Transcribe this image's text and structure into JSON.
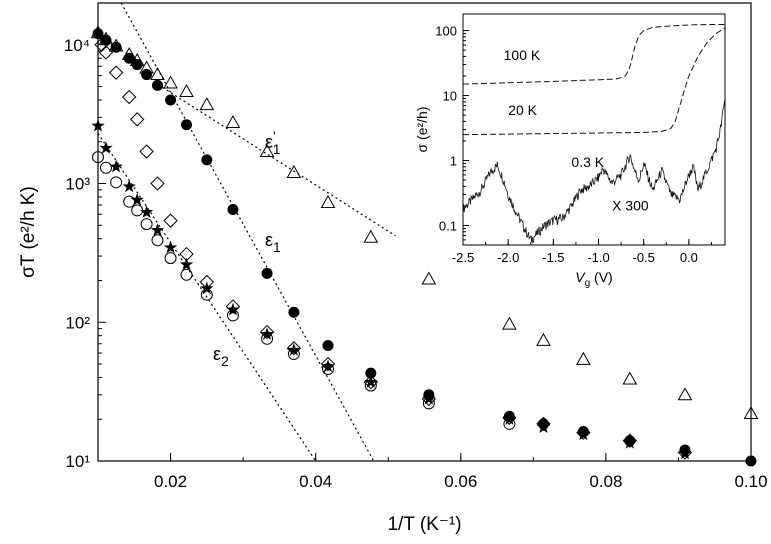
{
  "chart_data": [
    {
      "type": "scatter",
      "xlabel": "1/T (K⁻¹)",
      "ylabel": "σT (e²/h K)",
      "xlim": [
        0.01,
        0.1
      ],
      "ylim": [
        10,
        20000
      ],
      "y_scale": "log",
      "x_ticks": [
        {
          "value": 0.02,
          "label": "0.02"
        },
        {
          "value": 0.04,
          "label": "0.04"
        },
        {
          "value": 0.06,
          "label": "0.06"
        },
        {
          "value": 0.08,
          "label": "0.08"
        },
        {
          "value": 0.1,
          "label": "0.10"
        }
      ],
      "y_ticks": [
        {
          "value": 10,
          "label": "10¹"
        },
        {
          "value": 100,
          "label": "10²"
        },
        {
          "value": 1000,
          "label": "10³"
        },
        {
          "value": 10000,
          "label": "10⁴"
        }
      ],
      "series": [
        {
          "marker": "triangle-open",
          "color": "#000000",
          "x": [
            0.01,
            0.0111,
            0.0125,
            0.0143,
            0.0154,
            0.0167,
            0.0182,
            0.02,
            0.0222,
            0.025,
            0.0286,
            0.0333,
            0.037,
            0.0417,
            0.0476,
            0.0556,
            0.0667,
            0.0714,
            0.0769,
            0.0833,
            0.0909,
            0.1
          ],
          "y": [
            12200,
            11000,
            9800,
            8500,
            7700,
            6800,
            6100,
            5300,
            4600,
            3700,
            2750,
            1700,
            1200,
            730,
            410,
            205,
            97,
            74,
            54,
            39,
            30,
            22
          ]
        },
        {
          "marker": "circle-filled",
          "color": "#000000",
          "x": [
            0.01,
            0.0111,
            0.0125,
            0.0143,
            0.0154,
            0.0167,
            0.0182,
            0.02,
            0.0222,
            0.025,
            0.0286,
            0.0333,
            0.037,
            0.0417,
            0.0476,
            0.0556,
            0.0667,
            0.0714,
            0.0769,
            0.0833,
            0.0909,
            0.1
          ],
          "y": [
            12000,
            10800,
            9600,
            8000,
            7200,
            6100,
            5100,
            4000,
            2650,
            1480,
            650,
            225,
            118,
            68,
            43,
            30,
            21,
            18.5,
            16.3,
            14,
            12,
            10
          ]
        },
        {
          "marker": "diamond-open",
          "color": "#000000",
          "x": [
            0.0105,
            0.0111,
            0.0125,
            0.0143,
            0.0154,
            0.0167,
            0.0182,
            0.02,
            0.0222,
            0.025,
            0.0286,
            0.0333,
            0.037,
            0.0417,
            0.0476,
            0.0556,
            0.0667,
            0.0714,
            0.0769,
            0.0833,
            0.0909
          ],
          "y": [
            10000,
            8800,
            6300,
            4200,
            2900,
            1700,
            1000,
            540,
            310,
            195,
            130,
            85,
            65,
            50,
            37,
            28,
            20.5,
            18.5,
            16,
            14,
            11.5
          ]
        },
        {
          "marker": "star-filled",
          "color": "#000000",
          "x": [
            0.01,
            0.0111,
            0.0125,
            0.0143,
            0.0154,
            0.0167,
            0.0182,
            0.02,
            0.0222,
            0.025,
            0.0286,
            0.0333,
            0.037,
            0.0417,
            0.0476,
            0.0556,
            0.0667,
            0.0714,
            0.0769,
            0.0833,
            0.0909
          ],
          "y": [
            2600,
            1800,
            1320,
            950,
            760,
            620,
            460,
            345,
            260,
            175,
            123,
            82,
            63,
            48,
            37,
            28,
            20,
            17.5,
            15.5,
            13.5,
            11.3
          ]
        },
        {
          "marker": "circle-open",
          "color": "#000000",
          "x": [
            0.01,
            0.0111,
            0.0125,
            0.0143,
            0.0154,
            0.0167,
            0.0182,
            0.02,
            0.0222,
            0.025,
            0.0286,
            0.0333,
            0.037,
            0.0417,
            0.0476,
            0.0556,
            0.0667
          ],
          "y": [
            1550,
            1300,
            1020,
            740,
            640,
            510,
            390,
            290,
            220,
            158,
            112,
            76,
            59,
            46,
            35,
            26,
            18.5
          ]
        }
      ],
      "fit_lines": [
        {
          "label_main": "ε",
          "label_sub": "1",
          "label_prime": "'",
          "x": [
            0.0189,
            0.051
          ],
          "y": [
            4920,
            420
          ]
        },
        {
          "label_main": "ε",
          "label_sub": "1",
          "label_prime": "",
          "x": [
            0.0132,
            0.048
          ],
          "y": [
            20000,
            10
          ]
        },
        {
          "label_main": "ε",
          "label_sub": "2",
          "label_prime": "",
          "x": [
            0.01,
            0.04
          ],
          "y": [
            2300,
            10
          ]
        }
      ]
    },
    {
      "type": "line",
      "inset": true,
      "xlabel": "V_g (V)",
      "ylabel": "σ (e²/h)",
      "xlim": [
        -2.5,
        0.4
      ],
      "ylim": [
        0.05,
        180
      ],
      "y_scale": "log",
      "x_ticks": [
        {
          "value": -2.5,
          "label": "-2.5"
        },
        {
          "value": -2.0,
          "label": "-2.0"
        },
        {
          "value": -1.5,
          "label": "-1.5"
        },
        {
          "value": -1.0,
          "label": "-1.0"
        },
        {
          "value": -0.5,
          "label": "-0.5"
        },
        {
          "value": 0.0,
          "label": "0.0"
        }
      ],
      "y_ticks": [
        {
          "value": 0.1,
          "label": "0.1"
        },
        {
          "value": 1,
          "label": "1"
        },
        {
          "value": 10,
          "label": "10"
        },
        {
          "value": 100,
          "label": "100"
        }
      ],
      "series": [
        {
          "name": "100 K",
          "style": "dash",
          "x": [
            -2.5,
            -1.5,
            -1.0,
            -0.8,
            -0.7,
            -0.65,
            -0.6,
            -0.55,
            -0.5,
            -0.4,
            -0.2,
            0.0,
            0.2,
            0.4
          ],
          "y": [
            15,
            16.5,
            17.5,
            18,
            20,
            28,
            55,
            85,
            100,
            112,
            118,
            122,
            124,
            124
          ]
        },
        {
          "name": "20 K",
          "style": "dash",
          "x": [
            -2.5,
            -1.5,
            -0.5,
            -0.3,
            -0.2,
            -0.15,
            -0.1,
            -0.05,
            0.0,
            0.1,
            0.2,
            0.3,
            0.4
          ],
          "y": [
            2.5,
            2.6,
            2.7,
            2.8,
            3.1,
            4,
            7,
            12,
            20,
            40,
            65,
            90,
            110
          ]
        },
        {
          "name": "0.3 K",
          "note": "X 300",
          "style": "solid",
          "x": [
            -2.5,
            -2.4,
            -2.3,
            -2.2,
            -2.12,
            -2.05,
            -2.0,
            -1.9,
            -1.8,
            -1.75,
            -1.7,
            -1.6,
            -1.5,
            -1.4,
            -1.3,
            -1.2,
            -1.1,
            -1.0,
            -0.95,
            -0.85,
            -0.75,
            -0.65,
            -0.6,
            -0.55,
            -0.5,
            -0.4,
            -0.3,
            -0.2,
            -0.1,
            0.0,
            0.05,
            0.1,
            0.2,
            0.3,
            0.35,
            0.4
          ],
          "y": [
            0.18,
            0.25,
            0.35,
            0.65,
            0.85,
            0.5,
            0.3,
            0.15,
            0.08,
            0.06,
            0.07,
            0.1,
            0.12,
            0.13,
            0.2,
            0.35,
            0.4,
            0.55,
            0.75,
            0.45,
            0.6,
            1.2,
            0.7,
            0.5,
            0.9,
            0.35,
            0.7,
            0.3,
            0.25,
            0.6,
            0.8,
            0.35,
            0.7,
            1.5,
            3,
            9
          ]
        }
      ]
    }
  ]
}
